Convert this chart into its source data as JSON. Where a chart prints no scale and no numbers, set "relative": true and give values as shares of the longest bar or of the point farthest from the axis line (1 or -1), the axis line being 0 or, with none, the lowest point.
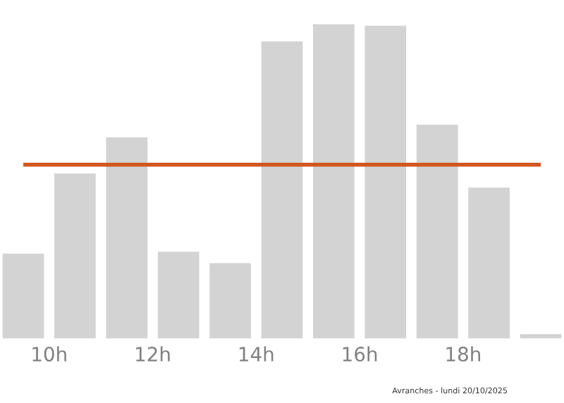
{
  "chart_data": {
    "type": "bar",
    "relative": true,
    "x": [
      9.5,
      10.5,
      11.5,
      12.5,
      13.5,
      14.5,
      15.5,
      16.5,
      17.5,
      18.5,
      19.5
    ],
    "values": [
      0.27,
      0.525,
      0.64,
      0.276,
      0.24,
      0.945,
      1.0,
      0.995,
      0.68,
      0.48,
      0.014
    ],
    "color": "#d3d3d3",
    "xlim": [
      9.05,
      19.95
    ],
    "xticks": [
      {
        "value": 10,
        "label": "10h"
      },
      {
        "value": 12,
        "label": "12h"
      },
      {
        "value": 14,
        "label": "14h"
      },
      {
        "value": 16,
        "label": "16h"
      },
      {
        "value": 18,
        "label": "18h"
      }
    ],
    "ref_lines": [
      {
        "axis": "y",
        "value": 0.553,
        "color": "#d2561e"
      }
    ],
    "annotations": [
      "Avranches - lundi 20/10/2025"
    ],
    "grid": false,
    "legend": false
  }
}
